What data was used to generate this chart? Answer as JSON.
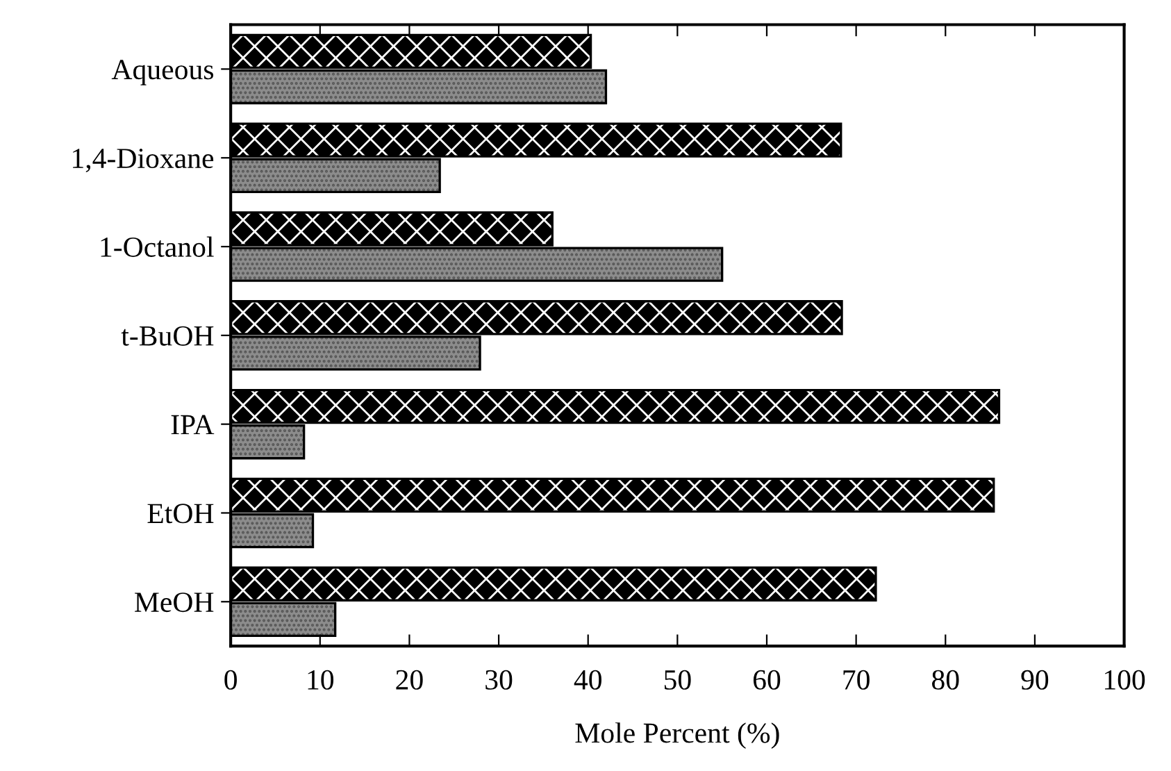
{
  "chart_data": {
    "type": "bar",
    "orientation": "horizontal",
    "xlabel": "Mole Percent (%)",
    "categories": [
      "Aqueous",
      "1,4-Dioxane",
      "1-Octanol",
      "t-BuOH",
      "IPA",
      "EtOH",
      "MeOH"
    ],
    "series": [
      {
        "color": "#000000",
        "values": [
          40.3,
          68.3,
          36.0,
          68.4,
          86.0,
          85.4,
          72.2
        ]
      },
      {
        "color": "#8c8c8c",
        "values": [
          42.0,
          23.4,
          55.0,
          27.9,
          8.2,
          9.2,
          11.7
        ]
      }
    ],
    "xlim": [
      0,
      100
    ],
    "xticks": [
      0,
      10,
      20,
      30,
      40,
      50,
      60,
      70,
      80,
      90,
      100
    ],
    "grid": false,
    "legend": false
  }
}
